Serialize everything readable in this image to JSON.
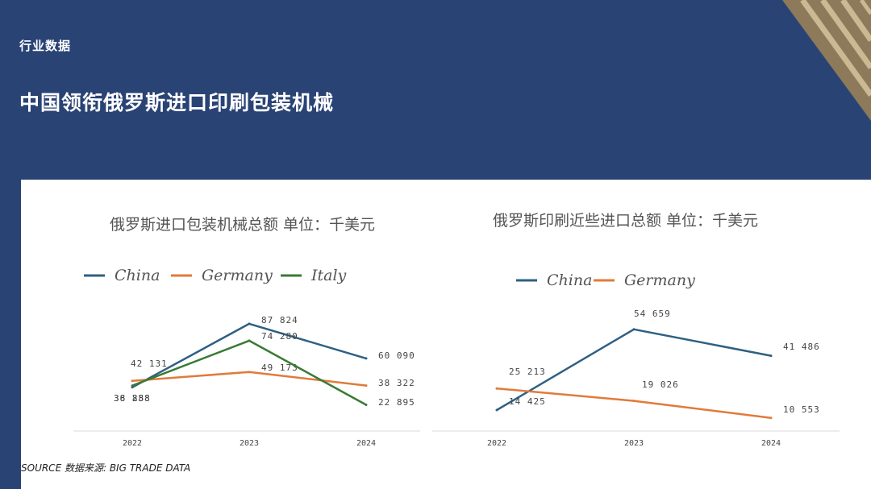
{
  "header": {
    "section_label": "行业数据",
    "title": "中国领衔俄罗斯进口印刷包装机械"
  },
  "source_note": "SOURCE 数据来源: BIG TRADE DATA",
  "colors": {
    "background": "#2a4375",
    "panel": "#ffffff",
    "China": "#2e6083",
    "Germany": "#e07b3b",
    "Italy": "#3a7a35",
    "axis": "#d9d9d9"
  },
  "chart_data": [
    {
      "type": "line",
      "title": "俄罗斯进口包装机械总额 单位：千美元",
      "categories": [
        "2022",
        "2023",
        "2024"
      ],
      "legend_position": "top",
      "grid": false,
      "ylim": [
        0,
        100000
      ],
      "series": [
        {
          "name": "China",
          "values": [
            36888,
            87824,
            60090
          ],
          "labels": [
            "36 888",
            "87 824",
            "60 090"
          ]
        },
        {
          "name": "Germany",
          "values": [
            42131,
            49173,
            38322
          ],
          "labels": [
            "42 131",
            "49 173",
            "38 322"
          ]
        },
        {
          "name": "Italy",
          "values": [
            38258,
            74280,
            22895
          ],
          "labels": [
            "38 258",
            "74 280",
            "22 895"
          ]
        }
      ]
    },
    {
      "type": "line",
      "title": "俄罗斯印刷近些进口总额 单位：千美元",
      "categories": [
        "2022",
        "2023",
        "2024"
      ],
      "legend_position": "top",
      "grid": false,
      "ylim": [
        0,
        65000
      ],
      "series": [
        {
          "name": "China",
          "values": [
            14425,
            54659,
            41486
          ],
          "labels": [
            "14 425",
            "54 659",
            "41 486"
          ]
        },
        {
          "name": "Germany",
          "values": [
            25213,
            19026,
            10553
          ],
          "labels": [
            "25 213",
            "19 026",
            "10 553"
          ]
        }
      ]
    }
  ]
}
